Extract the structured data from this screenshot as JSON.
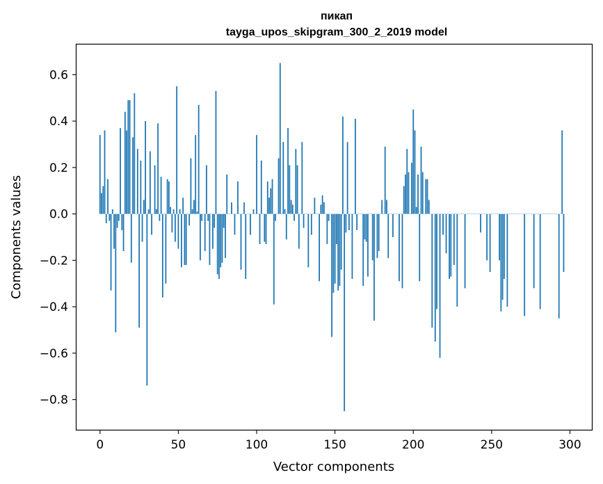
{
  "chart_data": {
    "type": "bar",
    "title_line1": "пикап",
    "title_line2": "tayga_upos_skipgram_300_2_2019 model",
    "xlabel": "Vector components",
    "ylabel": "Components values",
    "xlim": [
      -15,
      314
    ],
    "ylim": [
      -0.93,
      0.73
    ],
    "xticks": [
      0,
      50,
      100,
      150,
      200,
      250,
      300
    ],
    "xtick_labels": [
      "0",
      "50",
      "100",
      "150",
      "200",
      "250",
      "300"
    ],
    "yticks": [
      -0.8,
      -0.6,
      -0.4,
      -0.2,
      0.0,
      0.2,
      0.4,
      0.6
    ],
    "ytick_labels": [
      "−0.8",
      "−0.6",
      "−0.4",
      "−0.2",
      "0.0",
      "0.2",
      "0.4",
      "0.6"
    ],
    "bar_color": "#1f77b4",
    "values": [
      0.34,
      0.09,
      0.12,
      0.36,
      -0.04,
      0.15,
      -0.03,
      -0.33,
      0.02,
      -0.15,
      -0.51,
      -0.06,
      -0.03,
      0.37,
      -0.07,
      -0.16,
      0.44,
      0.36,
      0.49,
      0.49,
      -0.21,
      0.33,
      0.52,
      0.0,
      0.28,
      -0.49,
      0.23,
      -0.12,
      0.06,
      0.4,
      -0.74,
      0.02,
      0.27,
      -0.09,
      0.0,
      0.21,
      0.02,
      0.39,
      -0.03,
      0.16,
      -0.36,
      0.0,
      -0.3,
      0.15,
      0.14,
      0.03,
      -0.08,
      0.02,
      -0.12,
      0.55,
      -0.15,
      0.02,
      -0.23,
      0.07,
      -0.22,
      -0.22,
      0.0,
      -0.05,
      0.24,
      0.02,
      0.06,
      0.34,
      0.01,
      0.47,
      -0.2,
      -0.03,
      0.0,
      -0.16,
      0.21,
      -0.03,
      -0.22,
      0.0,
      -0.15,
      -0.06,
      0.53,
      -0.26,
      -0.28,
      -0.23,
      -0.21,
      -0.06,
      -0.19,
      0.17,
      0.0,
      0.0,
      0.05,
      0.0,
      -0.09,
      0.0,
      0.14,
      0.0,
      -0.24,
      0.0,
      0.05,
      -0.28,
      0.0,
      0.0,
      -0.09,
      0.0,
      0.02,
      0.0,
      0.34,
      0.0,
      -0.13,
      0.23,
      0.0,
      -0.12,
      -0.13,
      0.14,
      0.07,
      0.11,
      0.15,
      -0.39,
      -0.03,
      0.0,
      0.24,
      0.65,
      0.0,
      0.31,
      0.02,
      -0.11,
      0.37,
      0.21,
      0.06,
      0.04,
      -0.03,
      0.28,
      0.21,
      -0.15,
      0.0,
      0.31,
      -0.06,
      0.0,
      0.0,
      -0.23,
      0.0,
      -0.09,
      0.0,
      0.07,
      0.0,
      0.0,
      -0.29,
      0.04,
      0.08,
      0.05,
      0.0,
      -0.13,
      -0.03,
      0.0,
      -0.53,
      -0.34,
      -0.3,
      -0.13,
      -0.33,
      -0.31,
      -0.24,
      0.42,
      -0.85,
      -0.08,
      0.31,
      -0.07,
      0.0,
      -0.28,
      0.0,
      0.41,
      -0.07,
      0.0,
      0.0,
      0.0,
      -0.31,
      -0.11,
      -0.12,
      -0.27,
      0.0,
      0.0,
      -0.2,
      -0.46,
      0.0,
      -0.19,
      -0.16,
      0.0,
      0.06,
      0.0,
      0.29,
      0.06,
      -0.19,
      0.0,
      0.0,
      -0.1,
      0.0,
      0.0,
      0.0,
      -0.29,
      0.0,
      -0.32,
      0.12,
      0.17,
      0.28,
      0.18,
      0.0,
      0.22,
      0.45,
      0.36,
      0.03,
      0.17,
      -0.29,
      0.29,
      0.18,
      0.0,
      0.15,
      0.15,
      0.06,
      0.0,
      -0.49,
      0.0,
      -0.55,
      -0.41,
      0.0,
      -0.62,
      0.0,
      -0.09,
      0.0,
      -0.17,
      0.0,
      -0.28,
      -0.27,
      0.0,
      -0.22,
      0.0,
      -0.4,
      0.0,
      0.0,
      0.0,
      0.0,
      -0.32,
      0.0,
      0.0,
      0.0,
      0.0,
      0.0,
      0.0,
      0.0,
      0.0,
      0.0,
      -0.08,
      0.0,
      0.0,
      0.0,
      -0.2,
      0.0,
      -0.25,
      0.0,
      0.0,
      0.0,
      0.0,
      0.0,
      -0.2,
      -0.42,
      -0.37,
      -0.28,
      0.0,
      -0.4,
      0.0,
      0.0,
      0.0,
      0.0,
      0.0,
      0.0,
      0.0,
      0.0,
      0.0,
      0.0,
      -0.44,
      0.0,
      0.0,
      0.0,
      0.0,
      0.0,
      -0.32,
      0.0,
      0.0,
      0.0,
      -0.41,
      0.0,
      0.0,
      0.0,
      0.0,
      0.0,
      0.0,
      0.0,
      0.0,
      0.0,
      0.0,
      0.0,
      -0.45,
      0.0,
      0.36,
      -0.25
    ]
  }
}
